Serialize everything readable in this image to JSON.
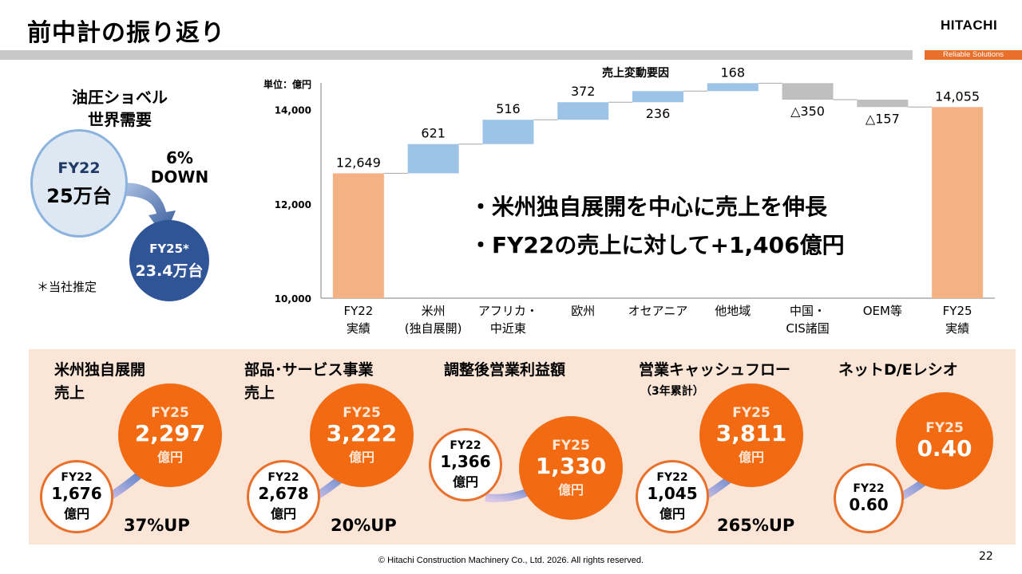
{
  "header": {
    "title": "前中計の振り返り",
    "logo": "HITACHI",
    "tagline": "Reliable Solutions"
  },
  "demand": {
    "title_line1": "油圧ショベル",
    "title_line2": "世界需要",
    "fy22_label": "FY22",
    "fy22_value": "25万台",
    "fy25_label": "FY25*",
    "fy25_value": "23.4万台",
    "change_pct": "6%",
    "change_dir": "DOWN",
    "note": "＊当社推定"
  },
  "chart_data": {
    "type": "waterfall",
    "title": "売上変動要因",
    "unit_label": "単位：億円",
    "ylim": [
      10000,
      14500
    ],
    "yticks": [
      10000,
      12000,
      14000
    ],
    "ytick_labels": [
      "10,000",
      "12,000",
      "14,000"
    ],
    "categories": [
      [
        "FY22",
        "実績"
      ],
      [
        "米州",
        "(独自展開)"
      ],
      [
        "アフリカ・",
        "中近東"
      ],
      [
        "欧州",
        ""
      ],
      [
        "オセアニア",
        ""
      ],
      [
        "他地域",
        ""
      ],
      [
        "中国・",
        "CIS諸国"
      ],
      [
        "OEM等",
        ""
      ],
      [
        "FY25",
        "実績"
      ]
    ],
    "steps": [
      {
        "kind": "total",
        "value": 12649,
        "label": "12,649"
      },
      {
        "kind": "delta",
        "value": 621,
        "label": "621"
      },
      {
        "kind": "delta",
        "value": 516,
        "label": "516"
      },
      {
        "kind": "delta",
        "value": 372,
        "label": "372"
      },
      {
        "kind": "delta",
        "value": 236,
        "label": "236"
      },
      {
        "kind": "delta",
        "value": 168,
        "label": "168"
      },
      {
        "kind": "delta",
        "value": -350,
        "label": "△350"
      },
      {
        "kind": "delta",
        "value": -157,
        "label": "△157"
      },
      {
        "kind": "total",
        "value": 14055,
        "label": "14,055"
      }
    ],
    "colors": {
      "total": "#f4b183",
      "increase": "#9dc3e6",
      "decrease": "#bfbfbf"
    },
    "bullets": [
      "米州独自展開を中心に売上を伸長",
      "FY22の売上に対して+1,406億円"
    ],
    "bullet_mark": "・"
  },
  "kpis": [
    {
      "title_lines": [
        "米州独自展開",
        "売上"
      ],
      "subtitle": "",
      "fy22_label": "FY22",
      "fy22_value": "1,676",
      "fy22_unit": "億円",
      "fy25_label": "FY25",
      "fy25_value": "2,297",
      "fy25_unit": "億円",
      "growth": "37%UP"
    },
    {
      "title_lines": [
        "部品･サービス事業",
        "売上"
      ],
      "subtitle": "",
      "fy22_label": "FY22",
      "fy22_value": "2,678",
      "fy22_unit": "億円",
      "fy25_label": "FY25",
      "fy25_value": "3,222",
      "fy25_unit": "億円",
      "growth": "20%UP"
    },
    {
      "title_lines": [
        "調整後営業利益額",
        ""
      ],
      "subtitle": "",
      "fy22_label": "FY22",
      "fy22_value": "1,366",
      "fy22_unit": "億円",
      "fy25_label": "FY25",
      "fy25_value": "1,330",
      "fy25_unit": "億円",
      "growth": ""
    },
    {
      "title_lines": [
        "営業キャッシュフロー",
        ""
      ],
      "subtitle": "（3年累計）",
      "fy22_label": "FY22",
      "fy22_value": "1,045",
      "fy22_unit": "億円",
      "fy25_label": "FY25",
      "fy25_value": "3,811",
      "fy25_unit": "億円",
      "growth": "265%UP"
    },
    {
      "title_lines": [
        "ネットD/Eレシオ",
        ""
      ],
      "subtitle": "",
      "fy22_label": "FY22",
      "fy22_value": "0.60",
      "fy22_unit": "",
      "fy25_label": "FY25",
      "fy25_value": "0.40",
      "fy25_unit": "",
      "growth": ""
    }
  ],
  "footer": {
    "copyright": "© Hitachi Construction Machinery Co., Ltd. 2026. All rights reserved.",
    "page": "22"
  }
}
